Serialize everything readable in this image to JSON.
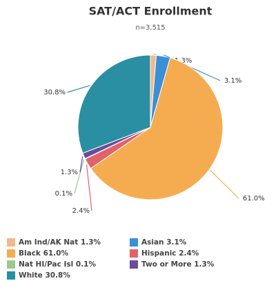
{
  "chart_data": {
    "type": "pie",
    "title": "SAT/ACT Enrollment",
    "subtitle": "n=3,515",
    "categories": [
      "Am Ind/AK Nat",
      "Asian",
      "Black",
      "Hispanic",
      "Nat HI/Pac Isl",
      "Two or More",
      "White"
    ],
    "values": [
      1.3,
      3.1,
      61.0,
      2.4,
      0.1,
      1.3,
      30.8
    ],
    "value_labels": [
      "1.3%",
      "3.1%",
      "61.0%",
      "2.4%",
      "0.1%",
      "1.3%",
      "30.8%"
    ],
    "colors": [
      "#f2b98c",
      "#3a8fd6",
      "#f5ac50",
      "#e0626a",
      "#9dc98a",
      "#6a4c9c",
      "#2a8fa3"
    ],
    "legend": "bottom"
  }
}
